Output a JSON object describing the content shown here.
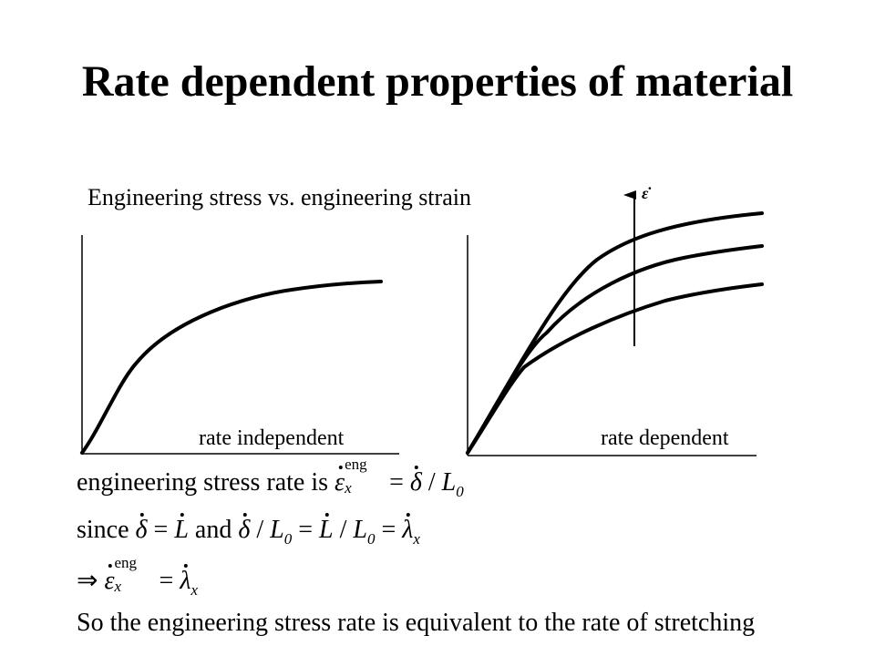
{
  "title": "Rate dependent properties of material",
  "figure": {
    "caption": "Engineering stress vs. engineering strain",
    "left_plot_label": "rate independent",
    "right_plot_label": "rate dependent",
    "arrow_symbol": "ε̇"
  },
  "equations": {
    "line1_text": "engineering stress rate is",
    "line2_since": "since",
    "line2_and": "and",
    "line4_text": "So the engineering stress rate is equivalent to the rate of stretching",
    "eng_superscript": "eng",
    "x_subscript": "x",
    "zero_subscript": "0"
  },
  "chart_data": [
    {
      "type": "line",
      "title": "",
      "xlabel": "",
      "ylabel": "",
      "series": [
        {
          "points": [
            [
              0,
              0
            ],
            [
              0.15,
              0.43
            ],
            [
              0.3,
              0.66
            ],
            [
              0.5,
              0.79
            ],
            [
              0.75,
              0.86
            ],
            [
              1.0,
              0.9
            ]
          ]
        }
      ],
      "annotations": [
        "rate independent"
      ],
      "grid": false
    },
    {
      "type": "line",
      "title": "",
      "xlabel": "",
      "ylabel": "",
      "series": [
        {
          "points": [
            [
              0,
              0
            ],
            [
              0.17,
              0.48
            ],
            [
              0.35,
              0.76
            ],
            [
              0.6,
              0.86
            ],
            [
              1.0,
              0.91
            ]
          ]
        },
        {
          "points": [
            [
              0,
              0
            ],
            [
              0.17,
              0.48
            ],
            [
              0.35,
              0.64
            ],
            [
              0.6,
              0.76
            ],
            [
              1.0,
              0.81
            ]
          ]
        },
        {
          "points": [
            [
              0,
              0
            ],
            [
              0.17,
              0.48
            ],
            [
              0.35,
              0.52
            ],
            [
              0.6,
              0.62
            ],
            [
              1.0,
              0.67
            ]
          ]
        }
      ],
      "annotations": [
        "rate dependent",
        "ε̇ increasing (arrow)"
      ],
      "grid": false
    }
  ]
}
